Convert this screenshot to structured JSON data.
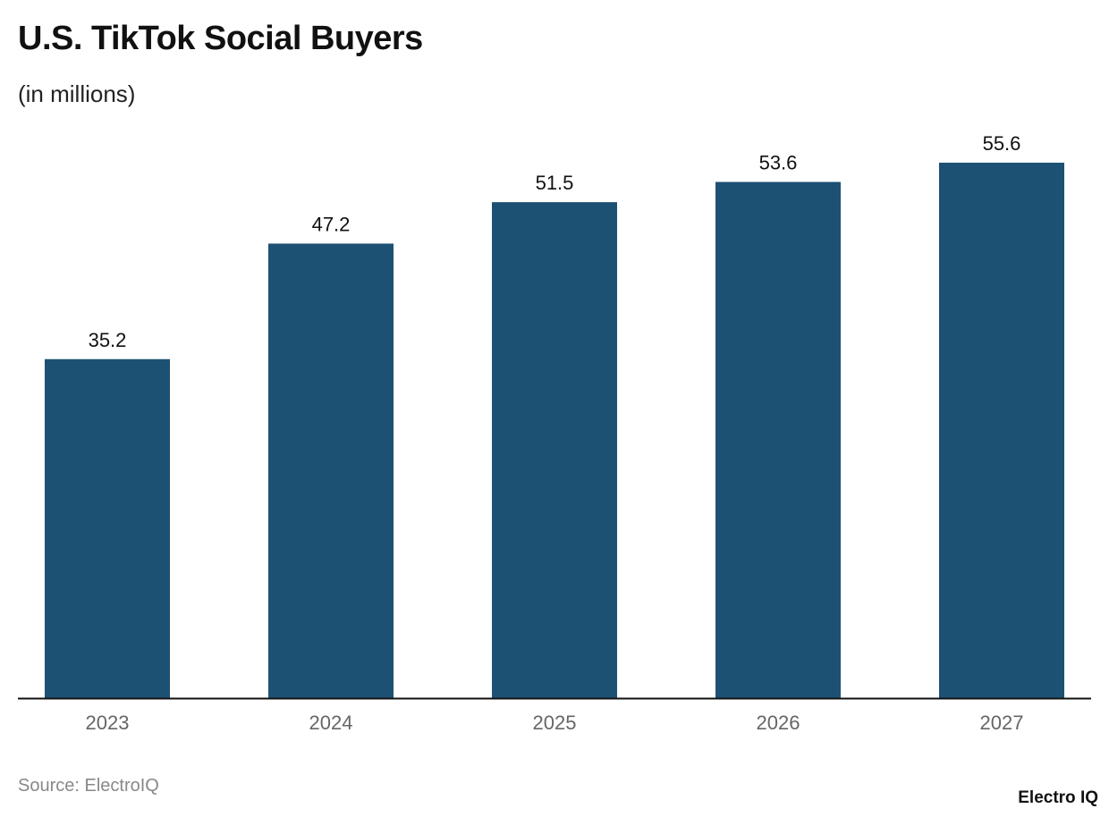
{
  "title": "U.S. TikTok Social Buyers",
  "subtitle": "(in millions)",
  "source": "Source: ElectroIQ",
  "logo": "Electro IQ",
  "chart_data": {
    "type": "bar",
    "title": "U.S. TikTok Social Buyers",
    "subtitle": "(in millions)",
    "categories": [
      "2023",
      "2024",
      "2025",
      "2026",
      "2027"
    ],
    "values": [
      35.2,
      47.2,
      51.5,
      53.6,
      55.6
    ],
    "data_labels": [
      "35.2",
      "47.2",
      "51.5",
      "53.6",
      "55.6"
    ],
    "xlabel": "",
    "ylabel": "",
    "ylim": [
      0,
      55.6
    ],
    "grid": false,
    "legend": "none",
    "bar_color": "#1d5174"
  }
}
